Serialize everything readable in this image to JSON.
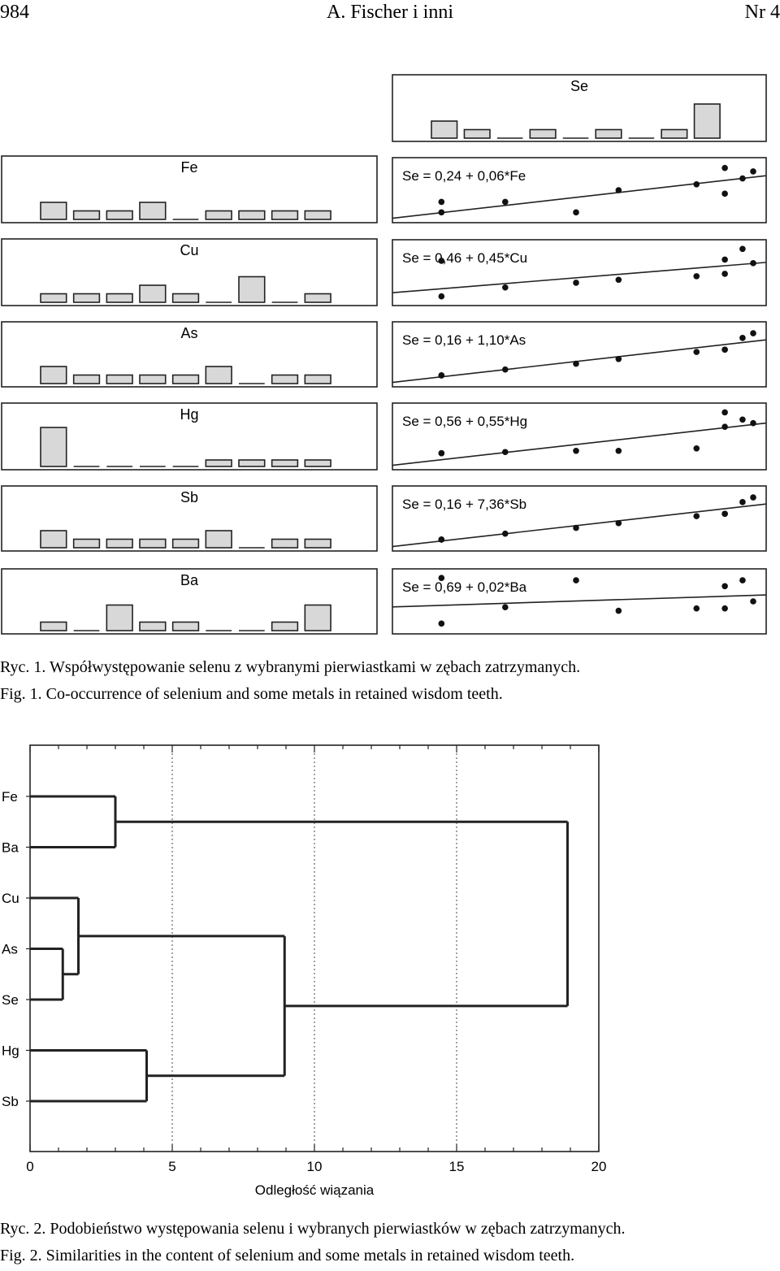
{
  "header": {
    "page_number": "984",
    "authors": "A. Fischer i inni",
    "issue": "Nr 4"
  },
  "figure1": {
    "bar_panels": [
      {
        "label": "Se",
        "bars": [
          2,
          1,
          0,
          1,
          0,
          1,
          0,
          1,
          4
        ]
      },
      {
        "label": "Fe",
        "bars": [
          2,
          1,
          1,
          2,
          0,
          1,
          1,
          1,
          1
        ]
      },
      {
        "label": "Cu",
        "bars": [
          1,
          1,
          1,
          2,
          1,
          0,
          3,
          0,
          1
        ]
      },
      {
        "label": "As",
        "bars": [
          2,
          1,
          1,
          1,
          1,
          2,
          0,
          1,
          1
        ]
      },
      {
        "label": "Hg",
        "bars": [
          6,
          0,
          0,
          0,
          0,
          1,
          1,
          1,
          1
        ]
      },
      {
        "label": "Sb",
        "bars": [
          2,
          1,
          1,
          1,
          1,
          2,
          0,
          1,
          1
        ]
      },
      {
        "label": "Ba",
        "bars": [
          1,
          0,
          3,
          1,
          1,
          0,
          0,
          1,
          3
        ]
      }
    ],
    "regressions": [
      {
        "element": "Fe",
        "equation": "Se = 0,24 + 0,06*Fe"
      },
      {
        "element": "Cu",
        "equation": "Se = 0,46 + 0,45*Cu"
      },
      {
        "element": "As",
        "equation": "Se = 0,16 + 1,10*As"
      },
      {
        "element": "Hg",
        "equation": "Se = 0,56 + 0,55*Hg"
      },
      {
        "element": "Sb",
        "equation": "Se = 0,16 + 7,36*Sb"
      },
      {
        "element": "Ba",
        "equation": "Se = 0,69 + 0,02*Ba"
      }
    ],
    "caption_pl": "Ryc. 1. Współwystępowanie selenu z wybranymi pierwiastkami w zębach zatrzymanych.",
    "caption_en": "Fig. 1. Co-occurrence of selenium and some metals in retained wisdom teeth."
  },
  "chart_data": [
    {
      "type": "bar",
      "title": "",
      "panels": [
        "Se",
        "Fe",
        "Cu",
        "As",
        "Hg",
        "Sb",
        "Ba"
      ],
      "note": "small histograms, relative bar heights per panel"
    },
    {
      "type": "scatter",
      "title": "",
      "series": [
        {
          "name": "Se = 0,24 + 0,06*Fe",
          "points_rel": [
            [
              0.12,
              0.7
            ],
            [
              0.12,
              0.88
            ],
            [
              0.3,
              0.7
            ],
            [
              0.5,
              0.88
            ],
            [
              0.62,
              0.5
            ],
            [
              0.84,
              0.4
            ],
            [
              0.92,
              0.12
            ],
            [
              0.92,
              0.56
            ],
            [
              0.97,
              0.3
            ],
            [
              1.0,
              0.18
            ]
          ]
        },
        {
          "name": "Se = 0,46 + 0,45*Cu",
          "points_rel": [
            [
              0.12,
              0.3
            ],
            [
              0.12,
              0.9
            ],
            [
              0.3,
              0.75
            ],
            [
              0.5,
              0.67
            ],
            [
              0.62,
              0.62
            ],
            [
              0.84,
              0.56
            ],
            [
              0.92,
              0.28
            ],
            [
              0.92,
              0.52
            ],
            [
              0.97,
              0.1
            ],
            [
              1.0,
              0.34
            ]
          ]
        },
        {
          "name": "Se = 0,16 + 1,10*As",
          "points_rel": [
            [
              0.12,
              0.86
            ],
            [
              0.12,
              0.86
            ],
            [
              0.3,
              0.76
            ],
            [
              0.5,
              0.66
            ],
            [
              0.62,
              0.58
            ],
            [
              0.84,
              0.46
            ],
            [
              0.92,
              0.42
            ],
            [
              0.92,
              0.42
            ],
            [
              0.97,
              0.22
            ],
            [
              1.0,
              0.14
            ]
          ]
        },
        {
          "name": "Se = 0,56 + 0,55*Hg",
          "points_rel": [
            [
              0.12,
              0.78
            ],
            [
              0.12,
              0.78
            ],
            [
              0.3,
              0.76
            ],
            [
              0.5,
              0.74
            ],
            [
              0.62,
              0.74
            ],
            [
              0.84,
              0.7
            ],
            [
              0.92,
              0.1
            ],
            [
              0.92,
              0.34
            ],
            [
              0.97,
              0.22
            ],
            [
              1.0,
              0.28
            ]
          ]
        },
        {
          "name": "Se = 0,16 + 7,36*Sb",
          "points_rel": [
            [
              0.12,
              0.86
            ],
            [
              0.12,
              0.86
            ],
            [
              0.3,
              0.76
            ],
            [
              0.5,
              0.66
            ],
            [
              0.62,
              0.58
            ],
            [
              0.84,
              0.46
            ],
            [
              0.92,
              0.42
            ],
            [
              0.92,
              0.42
            ],
            [
              0.97,
              0.22
            ],
            [
              1.0,
              0.14
            ]
          ]
        },
        {
          "name": "Se = 0,69 + 0,02*Ba",
          "points_rel": [
            [
              0.12,
              0.1
            ],
            [
              0.12,
              0.88
            ],
            [
              0.3,
              0.6
            ],
            [
              0.5,
              0.14
            ],
            [
              0.62,
              0.66
            ],
            [
              0.84,
              0.62
            ],
            [
              0.92,
              0.24
            ],
            [
              0.92,
              0.62
            ],
            [
              0.97,
              0.14
            ],
            [
              1.0,
              0.5
            ]
          ]
        }
      ]
    },
    {
      "type": "dendrogram",
      "title": "",
      "xlabel": "Odległość wiązania",
      "ylabel": "",
      "xlim": [
        0,
        20
      ],
      "xticks": [
        0,
        5,
        10,
        15,
        20
      ],
      "grid": "vertical dotted at 5, 10, 15",
      "leaves": [
        "Fe",
        "Ba",
        "Cu",
        "As",
        "Se",
        "Hg",
        "Sb"
      ],
      "merges": [
        {
          "a": "As",
          "b": "Se",
          "distance": 1.15
        },
        {
          "a": "Cu",
          "b": "As+Se",
          "distance": 1.7
        },
        {
          "a": "Fe",
          "b": "Ba",
          "distance": 3.0
        },
        {
          "a": "Hg",
          "b": "Sb",
          "distance": 4.1
        },
        {
          "a": "Cu+As+Se",
          "b": "Hg+Sb",
          "distance": 8.95
        },
        {
          "a": "Fe+Ba",
          "b": "Cu+As+Se+Hg+Sb",
          "distance": 18.9
        }
      ]
    }
  ],
  "figure2": {
    "caption_pl": "Ryc. 2. Podobieństwo występowania selenu i wybranych pierwiastków w zębach zatrzymanych.",
    "caption_en": "Fig. 2. Similarities in the content of selenium and some metals in retained wisdom teeth."
  }
}
